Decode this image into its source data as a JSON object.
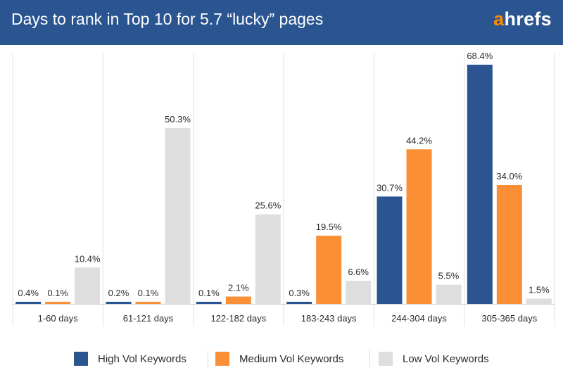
{
  "header": {
    "title": "Days to rank in Top 10 for 5.7 “lucky” pages",
    "brand_first": "a",
    "brand_rest": "hrefs",
    "colors": {
      "background": "#2a5591",
      "brand_accent": "#ff8800"
    }
  },
  "chart_data": {
    "type": "bar",
    "title": "Days to rank in Top 10 for 5.7 “lucky” pages",
    "categories": [
      "1-60 days",
      "61-121 days",
      "122-182 days",
      "183-243 days",
      "244-304 days",
      "305-365 days"
    ],
    "series": [
      {
        "name": "High Vol Keywords",
        "color": "#2a5591",
        "values": [
          0.4,
          0.2,
          0.1,
          0.3,
          30.7,
          68.4
        ],
        "labels": [
          "0.4%",
          "0.2%",
          "0.1%",
          "0.3%",
          "30.7%",
          "68.4%"
        ]
      },
      {
        "name": "Medium Vol Keywords",
        "color": "#fb8f36",
        "values": [
          0.1,
          0.1,
          2.1,
          19.5,
          44.2,
          34.0
        ],
        "labels": [
          "0.1%",
          "0.1%",
          "2.1%",
          "19.5%",
          "44.2%",
          "34.0%"
        ]
      },
      {
        "name": "Low Vol Keywords",
        "color": "#dedede",
        "values": [
          10.4,
          50.3,
          25.6,
          6.6,
          5.5,
          1.5
        ],
        "labels": [
          "10.4%",
          "50.3%",
          "25.6%",
          "6.6%",
          "5.5%",
          "1.5%"
        ]
      }
    ],
    "unit": "%",
    "ylim": [
      0,
      70
    ],
    "grid": false,
    "legend": "bottom-center"
  }
}
